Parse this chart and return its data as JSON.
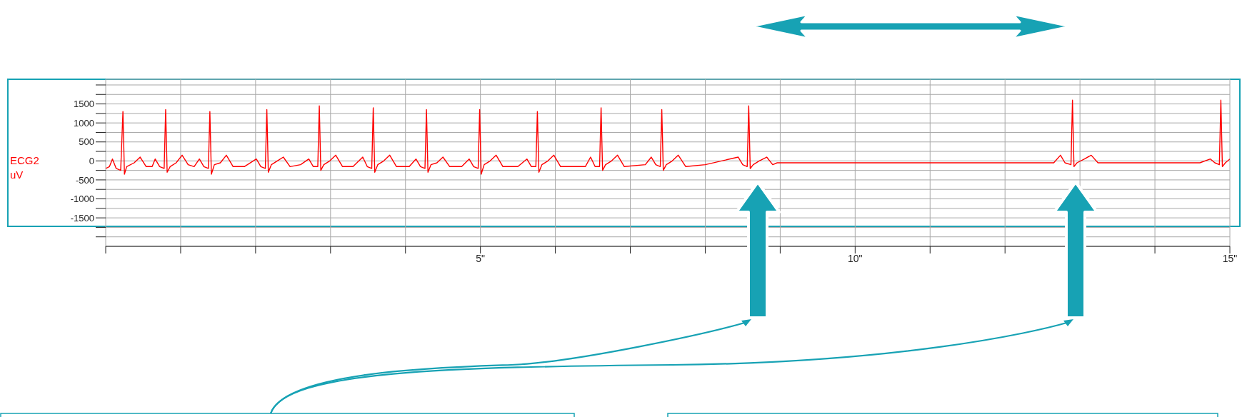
{
  "chart_data": {
    "type": "line",
    "ylabel": "ECG2 uV",
    "x": [
      0,
      0.05,
      0.09,
      0.14,
      0.2,
      0.23,
      0.25,
      0.28,
      0.38,
      0.46,
      0.54,
      0.62,
      0.66,
      0.72,
      0.78,
      0.8,
      0.82,
      0.86,
      0.94,
      1.02,
      1.1,
      1.18,
      1.25,
      1.31,
      1.37,
      1.39,
      1.41,
      1.45,
      1.53,
      1.61,
      1.7,
      1.85,
      2.01,
      2.07,
      2.13,
      2.15,
      2.17,
      2.21,
      2.29,
      2.37,
      2.46,
      2.6,
      2.71,
      2.77,
      2.83,
      2.85,
      2.87,
      2.91,
      2.99,
      3.07,
      3.16,
      3.3,
      3.43,
      3.49,
      3.55,
      3.57,
      3.59,
      3.63,
      3.71,
      3.79,
      3.88,
      4.05,
      4.14,
      4.2,
      4.26,
      4.28,
      4.3,
      4.34,
      4.42,
      4.5,
      4.59,
      4.75,
      4.85,
      4.91,
      4.97,
      4.99,
      5.01,
      5.05,
      5.13,
      5.21,
      5.3,
      5.5,
      5.62,
      5.68,
      5.74,
      5.76,
      5.78,
      5.82,
      5.9,
      5.98,
      6.07,
      6.4,
      6.47,
      6.53,
      6.59,
      6.61,
      6.63,
      6.67,
      6.75,
      6.83,
      6.92,
      7.2,
      7.28,
      7.34,
      7.4,
      7.42,
      7.44,
      7.48,
      7.56,
      7.64,
      7.74,
      8.0,
      8.44,
      8.5,
      8.56,
      8.58,
      8.6,
      8.64,
      8.72,
      8.82,
      8.9,
      8.96,
      9.1,
      10,
      11,
      12,
      12.65,
      12.74,
      12.8,
      12.88,
      12.9,
      12.92,
      12.96,
      13.06,
      13.15,
      13.24,
      13.5,
      14.0,
      14.6,
      14.74,
      14.8,
      14.86,
      14.88,
      14.9,
      14.94,
      15.0
    ],
    "series": [
      {
        "color": "#ff0000",
        "values": [
          -200,
          -150,
          50,
          -200,
          -250,
          1300,
          -350,
          -150,
          -50,
          100,
          -150,
          -150,
          50,
          -150,
          -200,
          1350,
          -300,
          -150,
          -50,
          150,
          -100,
          -150,
          50,
          -150,
          -200,
          1300,
          -350,
          -100,
          -50,
          150,
          -150,
          -150,
          50,
          -150,
          -200,
          1350,
          -300,
          -100,
          0,
          100,
          -150,
          -100,
          50,
          -150,
          -150,
          1450,
          -250,
          -100,
          0,
          150,
          -150,
          -150,
          100,
          -150,
          -200,
          1400,
          -300,
          -100,
          0,
          150,
          -150,
          -150,
          50,
          -150,
          -200,
          1350,
          -300,
          -100,
          -50,
          100,
          -150,
          -150,
          50,
          -150,
          -200,
          1350,
          -350,
          -100,
          0,
          150,
          -150,
          -150,
          50,
          -150,
          -150,
          1300,
          -300,
          -100,
          0,
          150,
          -150,
          -150,
          100,
          -150,
          -150,
          1400,
          -250,
          -100,
          0,
          150,
          -150,
          -100,
          100,
          -100,
          -150,
          1350,
          -250,
          -100,
          0,
          150,
          -150,
          -100,
          100,
          -100,
          -150,
          1450,
          -200,
          -100,
          0,
          100,
          -100,
          -50,
          -50,
          -50,
          -50,
          -50,
          -50,
          150,
          -50,
          -100,
          1600,
          -150,
          -50,
          50,
          150,
          -50,
          -50,
          -50,
          -50,
          50,
          -50,
          -100,
          1600,
          -150,
          -50,
          50
        ]
      }
    ],
    "xlim": [
      0,
      15
    ],
    "xticks": [
      {
        "value": 0,
        "label": null
      },
      {
        "value": 1,
        "label": null
      },
      {
        "value": 2,
        "label": null
      },
      {
        "value": 3,
        "label": null
      },
      {
        "value": 4,
        "label": null
      },
      {
        "value": 5,
        "label": "5\""
      },
      {
        "value": 6,
        "label": null
      },
      {
        "value": 7,
        "label": null
      },
      {
        "value": 8,
        "label": null
      },
      {
        "value": 9,
        "label": null
      },
      {
        "value": 10,
        "label": "10\""
      },
      {
        "value": 11,
        "label": null
      },
      {
        "value": 12,
        "label": null
      },
      {
        "value": 13,
        "label": null
      },
      {
        "value": 14,
        "label": null
      },
      {
        "value": 15,
        "label": "15\""
      }
    ],
    "ylim": [
      -2250,
      2150
    ],
    "yticks": [
      {
        "value": -2000,
        "label": null
      },
      {
        "value": -1750,
        "label": null
      },
      -1500,
      {
        "value": -1250,
        "label": null
      },
      -1000,
      {
        "value": -750,
        "label": null
      },
      -500,
      {
        "value": -250,
        "label": null
      },
      0,
      {
        "value": 250,
        "label": null
      },
      500,
      {
        "value": 750,
        "label": null
      },
      1000,
      {
        "value": 1250,
        "label": null
      },
      1500,
      {
        "value": 1750,
        "label": null
      },
      {
        "value": 2000,
        "label": null
      }
    ],
    "grid": true,
    "legend": false,
    "marker": "none",
    "line_style": "solid"
  }
}
